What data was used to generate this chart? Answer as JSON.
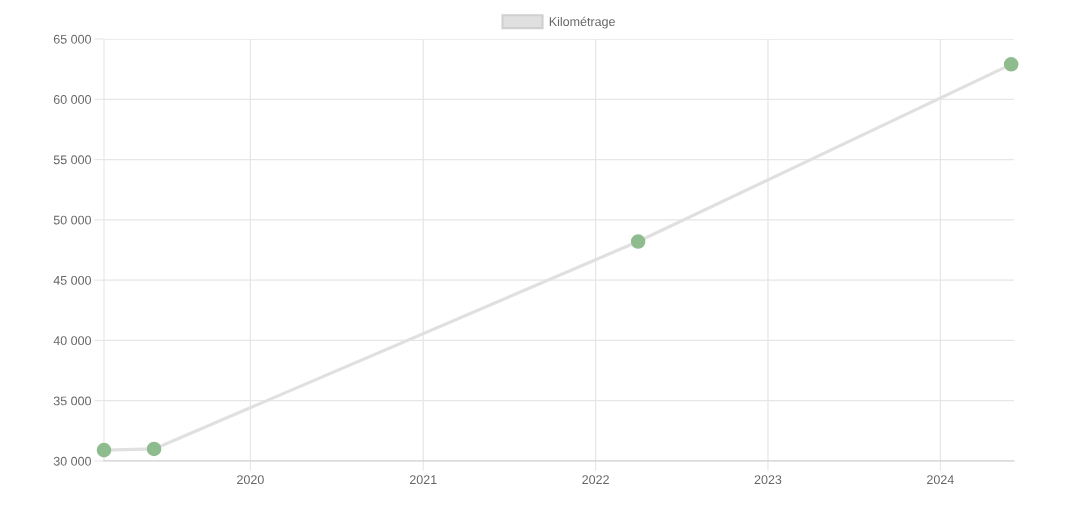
{
  "chart_data": {
    "type": "line",
    "x": [
      "2019-02-25",
      "2019-06-11",
      "2022-04-01",
      "2024-05-30"
    ],
    "series": [
      {
        "name": "Kilométrage",
        "color": "#e0e0e0",
        "colors": [
          "#8fbc8f",
          "#8fbc8f",
          "#8fbc8f",
          "#8fbc8f"
        ],
        "values": [
          30900,
          31000,
          48200,
          62900
        ]
      }
    ],
    "xlim": [
      "2019-02-25",
      "2024-06-05"
    ],
    "xticks": [
      {
        "value": "2020",
        "label": "2020"
      },
      {
        "value": "2021",
        "label": "2021"
      },
      {
        "value": "2022",
        "label": "2022"
      },
      {
        "value": "2023",
        "label": "2023"
      },
      {
        "value": "2024",
        "label": "2024"
      }
    ],
    "ylim": [
      30000,
      65000
    ],
    "yticks": [
      {
        "value": 30000,
        "label": "30 000"
      },
      {
        "value": 35000,
        "label": "35 000"
      },
      {
        "value": 40000,
        "label": "40 000"
      },
      {
        "value": 45000,
        "label": "45 000"
      },
      {
        "value": 50000,
        "label": "50 000"
      },
      {
        "value": 55000,
        "label": "55 000"
      },
      {
        "value": 60000,
        "label": "60 000"
      },
      {
        "value": 65000,
        "label": "65 000"
      }
    ],
    "grid": true,
    "legend": "top",
    "marker": "circle",
    "line_style": "solid"
  }
}
